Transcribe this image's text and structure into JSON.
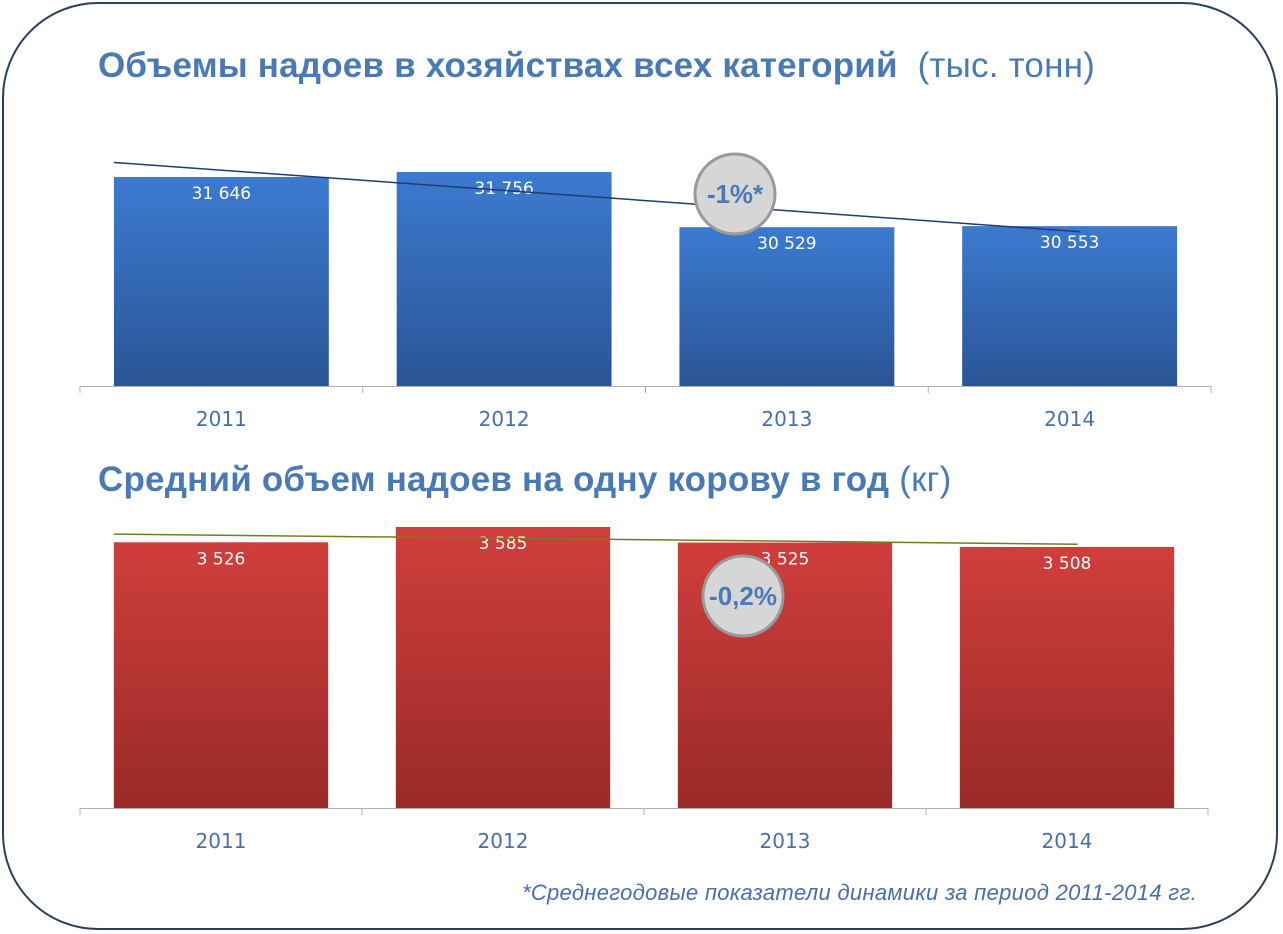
{
  "chart_data": [
    {
      "type": "bar",
      "title": "Объемы надоев в хозяйствах всех категорий",
      "unit": "(тыс. тонн)",
      "categories": [
        "2011",
        "2012",
        "2013",
        "2014"
      ],
      "values": [
        31646,
        31756,
        30529,
        30553
      ],
      "value_labels": [
        "31 646",
        "31 756",
        "30 529",
        "30 553"
      ],
      "trend_label": "-1%*",
      "trendline": true,
      "color": "#3a73c2"
    },
    {
      "type": "bar",
      "title": "Средний объем надоев на одну корову в год",
      "unit": "(кг)",
      "categories": [
        "2011",
        "2012",
        "2013",
        "2014"
      ],
      "values": [
        3526,
        3585,
        3525,
        3508
      ],
      "value_labels": [
        "3 526",
        "3 585",
        "3 525",
        "3 508"
      ],
      "trend_label": "-0,2%",
      "trendline": true,
      "color": "#cc3b39"
    }
  ],
  "footnote": "*Среднегодовые показатели динамики за период 2011-2014 гг."
}
